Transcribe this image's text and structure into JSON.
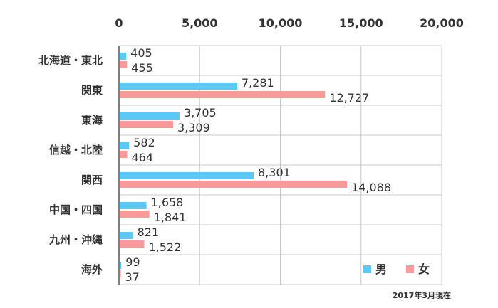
{
  "chart_data": {
    "type": "bar",
    "orientation": "horizontal",
    "categories": [
      "北海道・東北",
      "関東",
      "東海",
      "信越・北陸",
      "関西",
      "中国・四国",
      "九州・沖縄",
      "海外"
    ],
    "series": [
      {
        "name": "男",
        "color": "#5bc8f5",
        "values": [
          405,
          7281,
          3705,
          582,
          8301,
          1658,
          821,
          99
        ],
        "labels": [
          "405",
          "7,281",
          "3,705",
          "582",
          "8,301",
          "1,658",
          "821",
          "99"
        ]
      },
      {
        "name": "女",
        "color": "#f79a9a",
        "values": [
          455,
          12727,
          3309,
          464,
          14088,
          1841,
          1522,
          37
        ],
        "labels": [
          "455",
          "12,727",
          "3,309",
          "464",
          "14,088",
          "1,841",
          "1,522",
          "37"
        ]
      }
    ],
    "xlim": [
      0,
      20000
    ],
    "xticks": [
      0,
      5000,
      10000,
      15000,
      20000
    ],
    "xtick_labels": [
      "0",
      "5,000",
      "10,000",
      "15,000",
      "20,000"
    ],
    "axis_position": "top",
    "grid": true,
    "legend": "bottom-right",
    "note": "2017年3月現在"
  }
}
